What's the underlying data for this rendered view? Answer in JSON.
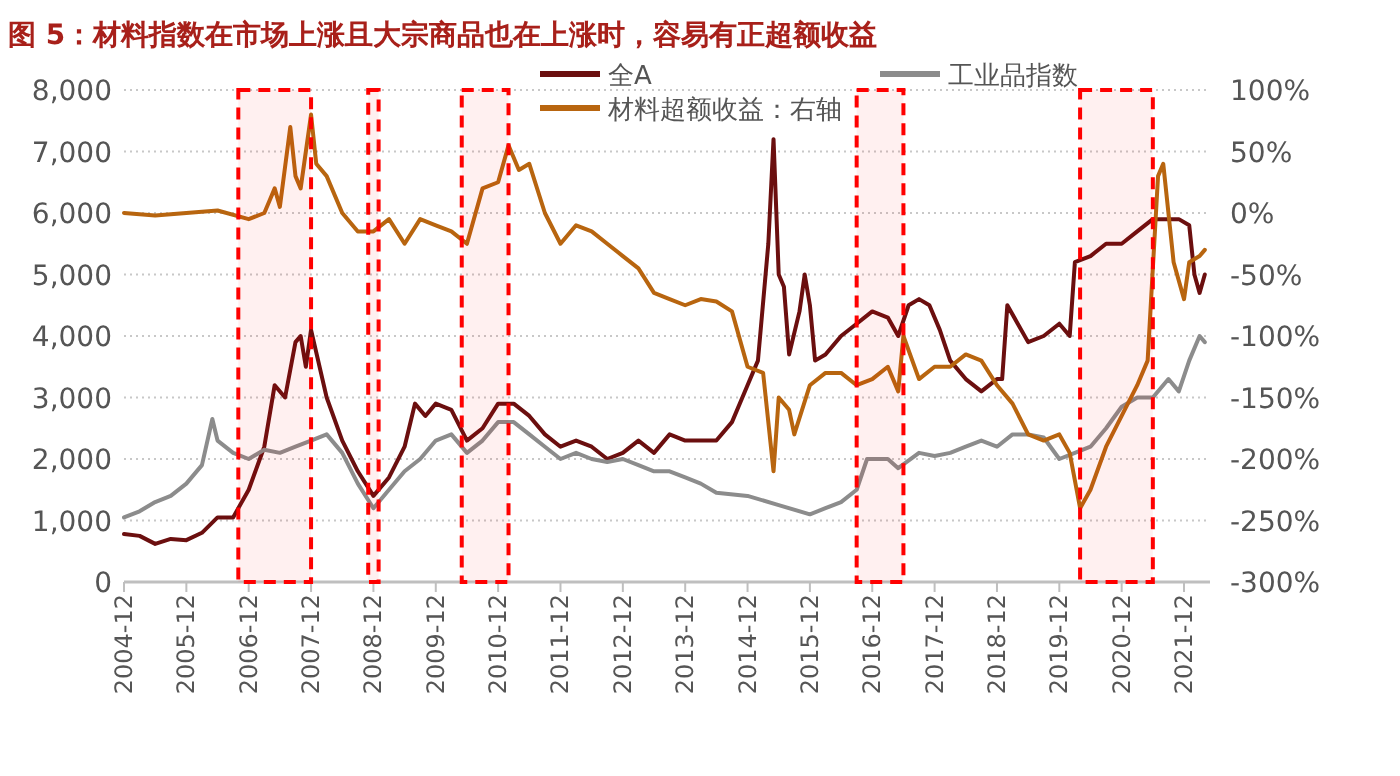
{
  "chart_data": {
    "type": "line",
    "title": "图 5：材料指数在市场上涨且大宗商品也在上涨时，容易有正超额收益",
    "xlim": [
      "2004-12",
      "2022-05"
    ],
    "xticks": [
      "2004-12",
      "2005-12",
      "2006-12",
      "2007-12",
      "2008-12",
      "2009-12",
      "2010-12",
      "2011-12",
      "2012-12",
      "2013-12",
      "2014-12",
      "2015-12",
      "2016-12",
      "2017-12",
      "2018-12",
      "2019-12",
      "2020-12",
      "2021-12"
    ],
    "ylim": [
      0,
      8000
    ],
    "yticks": [
      {
        "value": 0,
        "label": "0"
      },
      {
        "value": 1000,
        "label": "1,000"
      },
      {
        "value": 2000,
        "label": "2,000"
      },
      {
        "value": 3000,
        "label": "3,000"
      },
      {
        "value": 4000,
        "label": "4,000"
      },
      {
        "value": 5000,
        "label": "5,000"
      },
      {
        "value": 6000,
        "label": "6,000"
      },
      {
        "value": 7000,
        "label": "7,000"
      },
      {
        "value": 8000,
        "label": "8,000"
      }
    ],
    "y2lim": [
      -300,
      100
    ],
    "y2ticks": [
      {
        "value": -300,
        "label": "-300%"
      },
      {
        "value": -250,
        "label": "-250%"
      },
      {
        "value": -200,
        "label": "-200%"
      },
      {
        "value": -150,
        "label": "-150%"
      },
      {
        "value": -100,
        "label": "-100%"
      },
      {
        "value": -50,
        "label": "-50%"
      },
      {
        "value": 0,
        "label": "0%"
      },
      {
        "value": 50,
        "label": "50%"
      },
      {
        "value": 100,
        "label": "100%"
      }
    ],
    "grid": "y",
    "legend": "top right",
    "series": [
      {
        "name": "全A",
        "color": "#6b0f0f",
        "x": [
          "2004-12",
          "2005-03",
          "2005-06",
          "2005-09",
          "2005-12",
          "2006-03",
          "2006-06",
          "2006-09",
          "2006-12",
          "2007-03",
          "2007-05",
          "2007-07",
          "2007-09",
          "2007-10",
          "2007-11",
          "2007-12",
          "2008-03",
          "2008-06",
          "2008-09",
          "2008-12",
          "2009-03",
          "2009-06",
          "2009-08",
          "2009-10",
          "2009-12",
          "2010-03",
          "2010-06",
          "2010-09",
          "2010-12",
          "2011-03",
          "2011-06",
          "2011-09",
          "2011-12",
          "2012-03",
          "2012-06",
          "2012-09",
          "2012-12",
          "2013-03",
          "2013-06",
          "2013-09",
          "2013-12",
          "2014-06",
          "2014-09",
          "2014-12",
          "2015-02",
          "2015-04",
          "2015-05",
          "2015-06",
          "2015-07",
          "2015-08",
          "2015-10",
          "2015-11",
          "2015-12",
          "2016-01",
          "2016-03",
          "2016-06",
          "2016-09",
          "2016-12",
          "2017-03",
          "2017-05",
          "2017-07",
          "2017-09",
          "2017-11",
          "2018-01",
          "2018-03",
          "2018-06",
          "2018-09",
          "2018-12",
          "2019-01",
          "2019-02",
          "2019-04",
          "2019-06",
          "2019-09",
          "2019-12",
          "2020-02",
          "2020-03",
          "2020-06",
          "2020-09",
          "2020-12",
          "2021-03",
          "2021-06",
          "2021-09",
          "2021-11",
          "2022-01",
          "2022-02",
          "2022-03",
          "2022-04"
        ],
        "values": [
          780,
          750,
          620,
          700,
          680,
          800,
          1050,
          1050,
          1500,
          2200,
          3200,
          3000,
          3900,
          4000,
          3500,
          4100,
          3000,
          2300,
          1800,
          1400,
          1700,
          2200,
          2900,
          2700,
          2900,
          2800,
          2300,
          2500,
          2900,
          2900,
          2700,
          2400,
          2200,
          2300,
          2200,
          2000,
          2100,
          2300,
          2100,
          2400,
          2300,
          2300,
          2600,
          3200,
          3600,
          5500,
          7200,
          5000,
          4800,
          3700,
          4400,
          5000,
          4500,
          3600,
          3700,
          4000,
          4200,
          4400,
          4300,
          4000,
          4500,
          4600,
          4500,
          4100,
          3600,
          3300,
          3100,
          3300,
          3300,
          4500,
          4200,
          3900,
          4000,
          4200,
          4000,
          5200,
          5300,
          5500,
          5500,
          5700,
          5900,
          5900,
          5900,
          5800,
          5000,
          4700,
          5000
        ]
      },
      {
        "name": "工业品指数",
        "color": "#8c8c8c",
        "x": [
          "2004-12",
          "2005-03",
          "2005-06",
          "2005-09",
          "2005-12",
          "2006-03",
          "2006-05",
          "2006-06",
          "2006-09",
          "2006-12",
          "2007-03",
          "2007-06",
          "2007-09",
          "2007-12",
          "2008-03",
          "2008-06",
          "2008-09",
          "2008-12",
          "2009-03",
          "2009-06",
          "2009-09",
          "2009-12",
          "2010-03",
          "2010-06",
          "2010-09",
          "2010-12",
          "2011-03",
          "2011-06",
          "2011-09",
          "2011-12",
          "2012-03",
          "2012-06",
          "2012-09",
          "2012-12",
          "2013-03",
          "2013-06",
          "2013-09",
          "2013-12",
          "2014-03",
          "2014-06",
          "2014-12",
          "2015-06",
          "2015-12",
          "2016-03",
          "2016-06",
          "2016-09",
          "2016-11",
          "2017-03",
          "2017-05",
          "2017-09",
          "2017-12",
          "2018-03",
          "2018-06",
          "2018-09",
          "2018-12",
          "2019-03",
          "2019-06",
          "2019-09",
          "2019-12",
          "2020-03",
          "2020-06",
          "2020-09",
          "2020-12",
          "2021-03",
          "2021-06",
          "2021-09",
          "2021-11",
          "2022-01",
          "2022-03",
          "2022-04"
        ],
        "values": [
          1050,
          1150,
          1300,
          1400,
          1600,
          1900,
          2650,
          2300,
          2100,
          2000,
          2150,
          2100,
          2200,
          2300,
          2400,
          2100,
          1600,
          1200,
          1500,
          1800,
          2000,
          2300,
          2400,
          2100,
          2300,
          2600,
          2600,
          2400,
          2200,
          2000,
          2100,
          2000,
          1950,
          2000,
          1900,
          1800,
          1800,
          1700,
          1600,
          1450,
          1400,
          1250,
          1100,
          1200,
          1300,
          1500,
          2000,
          2000,
          1850,
          2100,
          2050,
          2100,
          2200,
          2300,
          2200,
          2400,
          2400,
          2350,
          2000,
          2100,
          2200,
          2500,
          2850,
          3000,
          3000,
          3300,
          3100,
          3600,
          4000,
          3900
        ]
      },
      {
        "name": "材料超额收益：右轴",
        "color": "#b8650f",
        "axis": "y2",
        "x": [
          "2004-12",
          "2005-06",
          "2006-06",
          "2006-12",
          "2007-03",
          "2007-04",
          "2007-05",
          "2007-06",
          "2007-08",
          "2007-09",
          "2007-10",
          "2007-12",
          "2008-01",
          "2008-03",
          "2008-06",
          "2008-09",
          "2008-12",
          "2009-03",
          "2009-06",
          "2009-09",
          "2009-12",
          "2010-03",
          "2010-06",
          "2010-09",
          "2010-12",
          "2011-02",
          "2011-04",
          "2011-06",
          "2011-09",
          "2011-12",
          "2012-03",
          "2012-06",
          "2012-09",
          "2012-12",
          "2013-03",
          "2013-06",
          "2013-09",
          "2013-12",
          "2014-03",
          "2014-06",
          "2014-09",
          "2014-12",
          "2015-03",
          "2015-05",
          "2015-06",
          "2015-08",
          "2015-09",
          "2015-12",
          "2016-03",
          "2016-06",
          "2016-09",
          "2016-12",
          "2017-03",
          "2017-05",
          "2017-06",
          "2017-09",
          "2017-12",
          "2018-03",
          "2018-06",
          "2018-09",
          "2018-12",
          "2019-03",
          "2019-06",
          "2019-09",
          "2019-12",
          "2020-02",
          "2020-04",
          "2020-06",
          "2020-09",
          "2020-12",
          "2021-03",
          "2021-05",
          "2021-07",
          "2021-08",
          "2021-10",
          "2021-12",
          "2022-01",
          "2022-03",
          "2022-04"
        ],
        "values": [
          0,
          -2,
          2,
          -5,
          0,
          10,
          20,
          5,
          70,
          30,
          20,
          80,
          40,
          30,
          0,
          -15,
          -15,
          -5,
          -25,
          -5,
          -10,
          -15,
          -25,
          20,
          25,
          55,
          35,
          40,
          0,
          -25,
          -10,
          -15,
          -25,
          -35,
          -45,
          -65,
          -70,
          -75,
          -70,
          -72,
          -80,
          -125,
          -130,
          -210,
          -150,
          -160,
          -180,
          -140,
          -130,
          -130,
          -140,
          -135,
          -125,
          -145,
          -100,
          -135,
          -125,
          -125,
          -115,
          -120,
          -140,
          -155,
          -180,
          -185,
          -180,
          -195,
          -240,
          -225,
          -190,
          -165,
          -140,
          -120,
          30,
          40,
          -40,
          -70,
          -40,
          -35,
          -30
        ]
      }
    ],
    "bands": [
      {
        "axis": "x",
        "from": "2006-10",
        "to": "2007-12",
        "color": "#ff0000"
      },
      {
        "axis": "x",
        "from": "2008-11",
        "to": "2009-01",
        "color": "#ff0000"
      },
      {
        "axis": "x",
        "from": "2010-05",
        "to": "2011-02",
        "color": "#ff0000"
      },
      {
        "axis": "x",
        "from": "2016-09",
        "to": "2017-06",
        "color": "#ff0000"
      },
      {
        "axis": "x",
        "from": "2020-04",
        "to": "2021-06",
        "color": "#ff0000"
      }
    ]
  }
}
